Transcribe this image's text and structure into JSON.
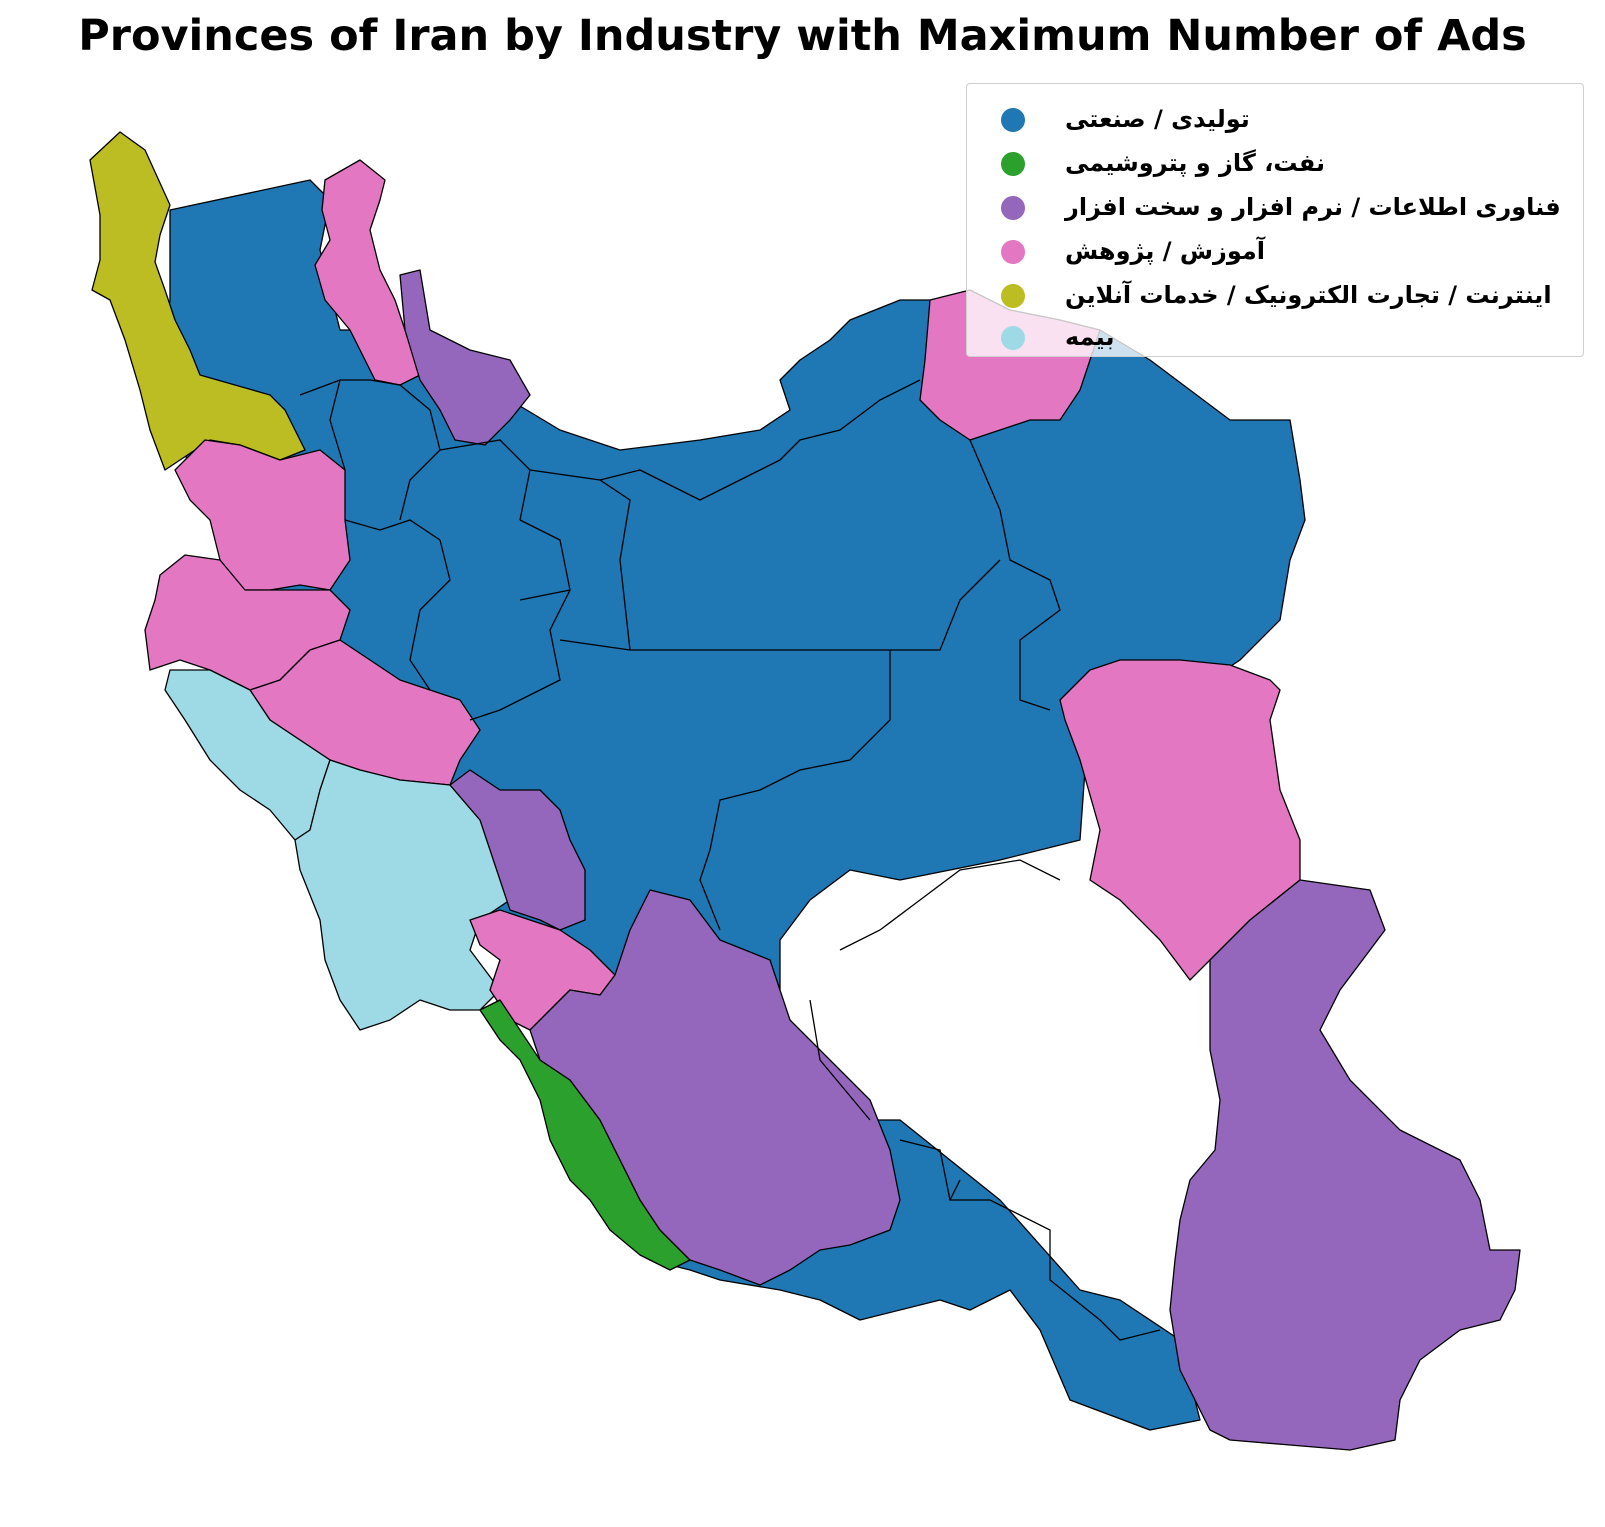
{
  "title": "Provinces of Iran by Industry with Maximum Number of Ads",
  "chart_data": {
    "type": "choropleth",
    "legend_placement": "top-right",
    "categories": [
      {
        "key": "industrial",
        "label": "تولیدی / صنعتی",
        "color": "#1f77b4"
      },
      {
        "key": "oil",
        "label": "نفت، گاز و پتروشیمی",
        "color": "#2ca02c"
      },
      {
        "key": "it",
        "label": "فناوری اطلاعات / نرم افزار و سخت افزار",
        "color": "#9467bd"
      },
      {
        "key": "education",
        "label": "آموزش / پژوهش",
        "color": "#e377c2"
      },
      {
        "key": "internet",
        "label": "اینترنت / تجارت الکترونیک / خدمات آنلاین",
        "color": "#bcbd22"
      },
      {
        "key": "insurance",
        "label": "بیمه",
        "color": "#9edae5"
      }
    ]
  }
}
